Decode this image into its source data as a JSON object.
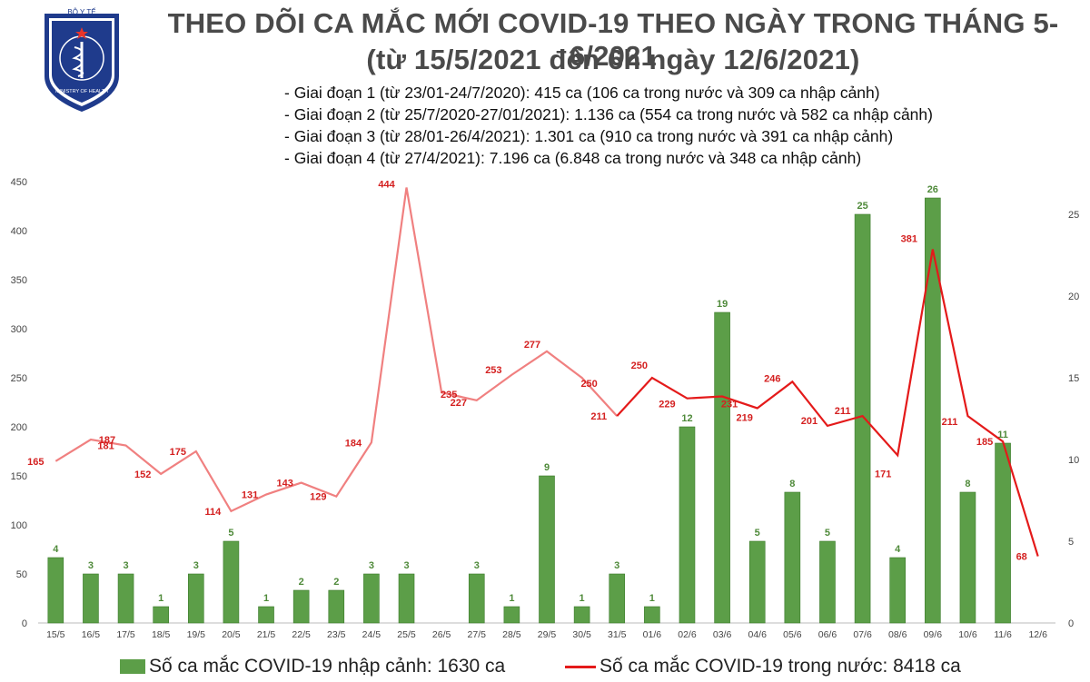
{
  "logo": {
    "top_text": "BỘ Y TẾ",
    "bottom_text": "MINISTRY OF HEALTH"
  },
  "title_line1": "THEO DÕI CA MẮC MỚI COVID-19 THEO NGÀY TRONG THÁNG 5-6/2021",
  "title_line2": "(từ 15/5/2021 đến 6h ngày 12/6/2021)",
  "notes": [
    "- Giai đoạn 1 (từ 23/01-24/7/2020): 415 ca (106 ca trong nước và 309 ca nhập cảnh)",
    "- Giai đoạn 2 (từ 25/7/2020-27/01/2021): 1.136 ca (554 ca trong nước và 582 ca nhập cảnh)",
    "- Giai đoạn 3 (từ 28/01-26/4/2021): 1.301 ca (910 ca trong nước và 391 ca nhập cảnh)",
    "- Giai đoạn 4 (từ 27/4/2021): 7.196 ca (6.848 ca trong nước và 348 ca nhập cảnh)"
  ],
  "colors": {
    "bar": "#5c9e48",
    "bar_dark": "#3a7a2a",
    "line_may": "#f08080",
    "line_june": "#e41a1a",
    "bar_label": "#4f8a3a",
    "line_label": "#d42020"
  },
  "chart_data": {
    "type": "bar+line",
    "categories": [
      "15/5",
      "16/5",
      "17/5",
      "18/5",
      "19/5",
      "20/5",
      "21/5",
      "22/5",
      "23/5",
      "24/5",
      "25/5",
      "26/5",
      "27/5",
      "28/5",
      "29/5",
      "30/5",
      "31/5",
      "01/6",
      "02/6",
      "03/6",
      "04/6",
      "05/6",
      "06/6",
      "07/6",
      "08/6",
      "09/6",
      "10/6",
      "11/6",
      "12/6"
    ],
    "series": [
      {
        "name": "Số ca mắc COVID-19 nhập cảnh: 1630 ca",
        "type": "bar",
        "axis": "right",
        "values": [
          4,
          3,
          3,
          1,
          3,
          5,
          1,
          2,
          2,
          3,
          3,
          null,
          3,
          1,
          9,
          1,
          3,
          1,
          12,
          19,
          5,
          8,
          5,
          25,
          4,
          26,
          8,
          11,
          null
        ]
      },
      {
        "name": "Số ca mắc COVID-19 trong nước: 8418 ca",
        "type": "line",
        "axis": "left",
        "values": [
          165,
          187,
          181,
          152,
          175,
          114,
          131,
          143,
          129,
          184,
          444,
          235,
          227,
          253,
          277,
          250,
          211,
          250,
          229,
          231,
          219,
          246,
          201,
          211,
          171,
          381,
          211,
          185,
          68
        ]
      }
    ],
    "left_axis": {
      "range": [
        0,
        450
      ],
      "ticks": [
        0,
        50,
        100,
        150,
        200,
        250,
        300,
        350,
        400,
        450
      ]
    },
    "right_axis": {
      "range": [
        0,
        27
      ],
      "ticks": [
        0,
        5,
        10,
        15,
        20,
        25
      ]
    },
    "grid": false,
    "legend_position": "bottom"
  }
}
